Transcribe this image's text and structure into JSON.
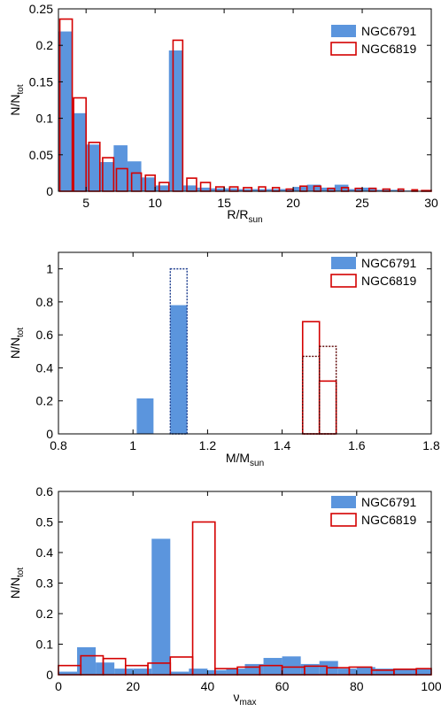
{
  "colors": {
    "ngc6791": "#5b95dd",
    "ngc6819": "#d40000",
    "axis": "#000000",
    "background": "#ffffff"
  },
  "chart_data": [
    {
      "type": "bar",
      "xlabel": {
        "main": "R/R",
        "sub": "sun"
      },
      "ylabel": {
        "main": "N/N",
        "sub": "tot"
      },
      "xlim": [
        3,
        30
      ],
      "ylim": [
        0,
        0.25
      ],
      "xticks": [
        5,
        10,
        15,
        20,
        25,
        30
      ],
      "xtick_labels": [
        "5",
        "10",
        "15",
        "20",
        "25",
        "30"
      ],
      "yticks": [
        0,
        0.05,
        0.1,
        0.15,
        0.2,
        0.25
      ],
      "ytick_labels": [
        "0",
        "0.05",
        "0.1",
        "0.15",
        "0.2",
        "0.25"
      ],
      "grid": false,
      "legend": "top-right",
      "series": [
        {
          "name": "NGC6791",
          "style": "filled",
          "bars": [
            [
              3.0,
              4.0,
              0.219
            ],
            [
              4.0,
              5.0,
              0.107
            ],
            [
              5.0,
              6.0,
              0.064
            ],
            [
              6.0,
              7.0,
              0.04
            ],
            [
              7.0,
              8.0,
              0.063
            ],
            [
              8.0,
              9.0,
              0.041
            ],
            [
              9.0,
              10.0,
              0.019
            ],
            [
              10.0,
              11.0,
              0.008
            ],
            [
              11.0,
              12.0,
              0.193
            ],
            [
              12.0,
              13.0,
              0.008
            ],
            [
              13.0,
              14.0,
              0.005
            ],
            [
              14.0,
              15.0,
              0.004
            ],
            [
              15.0,
              16.0,
              0.004
            ],
            [
              16.0,
              17.0,
              0.003
            ],
            [
              17.0,
              18.0,
              0.003
            ],
            [
              18.0,
              19.0,
              0.003
            ],
            [
              19.0,
              20.0,
              0.003
            ],
            [
              20.0,
              21.0,
              0.006
            ],
            [
              21.0,
              22.0,
              0.009
            ],
            [
              22.0,
              23.0,
              0.005
            ],
            [
              23.0,
              24.0,
              0.009
            ],
            [
              24.0,
              25.0,
              0.003
            ],
            [
              25.0,
              26.0,
              0.005
            ],
            [
              26.0,
              27.0,
              0.002
            ],
            [
              27.0,
              28.0,
              0.002
            ],
            [
              28.0,
              29.0,
              0.001
            ]
          ]
        },
        {
          "name": "NGC6819",
          "style": "outline",
          "bars": [
            [
              3.1,
              4.0,
              0.236
            ],
            [
              4.1,
              5.0,
              0.128
            ],
            [
              5.2,
              6.0,
              0.067
            ],
            [
              6.2,
              7.0,
              0.046
            ],
            [
              7.2,
              8.0,
              0.031
            ],
            [
              8.3,
              9.0,
              0.025
            ],
            [
              9.3,
              10.0,
              0.022
            ],
            [
              10.3,
              11.0,
              0.012
            ],
            [
              11.3,
              12.0,
              0.207
            ],
            [
              12.3,
              13.0,
              0.018
            ],
            [
              13.3,
              14.0,
              0.012
            ],
            [
              14.4,
              15.0,
              0.006
            ],
            [
              15.4,
              16.0,
              0.006
            ],
            [
              16.4,
              17.0,
              0.005
            ],
            [
              17.5,
              18.0,
              0.006
            ],
            [
              18.5,
              19.0,
              0.005
            ],
            [
              19.5,
              20.0,
              0.003
            ],
            [
              20.5,
              21.0,
              0.007
            ],
            [
              21.5,
              22.0,
              0.007
            ],
            [
              22.5,
              23.0,
              0.004
            ],
            [
              23.5,
              24.0,
              0.005
            ],
            [
              24.5,
              25.0,
              0.004
            ],
            [
              25.5,
              26.0,
              0.004
            ],
            [
              26.5,
              27.0,
              0.003
            ],
            [
              27.6,
              28.0,
              0.003
            ],
            [
              28.6,
              29.0,
              0.002
            ],
            [
              29.3,
              30.0,
              0.001
            ]
          ]
        }
      ]
    },
    {
      "type": "bar",
      "xlabel": {
        "main": "M/M",
        "sub": "sun"
      },
      "ylabel": {
        "main": "N/N",
        "sub": "tot"
      },
      "xlim": [
        0.8,
        1.8
      ],
      "ylim": [
        0,
        1.1
      ],
      "xticks": [
        0.8,
        1.0,
        1.2,
        1.4,
        1.6,
        1.8
      ],
      "xtick_labels": [
        "0.8",
        "1",
        "1.2",
        "1.4",
        "1.6",
        "1.8"
      ],
      "yticks": [
        0,
        0.2,
        0.4,
        0.6,
        0.8,
        1.0
      ],
      "ytick_labels": [
        "0",
        "0.2",
        "0.4",
        "0.6",
        "0.8",
        "1"
      ],
      "grid": false,
      "legend": "top-right",
      "series": [
        {
          "name": "NGC6791",
          "style": "filled",
          "bars": [
            [
              1.01,
              1.055,
              0.215
            ],
            [
              1.1,
              1.145,
              0.78
            ]
          ]
        },
        {
          "name": "NGC6791",
          "style": "dotted-outline",
          "legend": false,
          "bars": [
            [
              1.1,
              1.145,
              1.0
            ]
          ]
        },
        {
          "name": "NGC6819",
          "style": "outline",
          "bars": [
            [
              1.455,
              1.5,
              0.68
            ],
            [
              1.5,
              1.545,
              0.32
            ]
          ]
        },
        {
          "name": "NGC6819",
          "style": "dotted-outline",
          "legend": false,
          "bars": [
            [
              1.455,
              1.5,
              0.47
            ],
            [
              1.5,
              1.545,
              0.53
            ]
          ]
        }
      ]
    },
    {
      "type": "bar",
      "xlabel": {
        "main": "ν",
        "sub": "max"
      },
      "ylabel": {
        "main": "N/N",
        "sub": "tot"
      },
      "xlim": [
        0,
        100
      ],
      "ylim": [
        0,
        0.6
      ],
      "xticks": [
        0,
        20,
        40,
        60,
        80,
        100
      ],
      "xtick_labels": [
        "0",
        "20",
        "40",
        "60",
        "80",
        "100"
      ],
      "yticks": [
        0,
        0.1,
        0.2,
        0.3,
        0.4,
        0.5,
        0.6
      ],
      "ytick_labels": [
        "0",
        "0.1",
        "0.2",
        "0.3",
        "0.4",
        "0.5",
        "0.6"
      ],
      "grid": false,
      "legend": "top-right",
      "series": [
        {
          "name": "NGC6791",
          "style": "filled",
          "bars": [
            [
              0,
              5,
              0.01
            ],
            [
              5,
              10,
              0.09
            ],
            [
              10,
              15,
              0.04
            ],
            [
              15,
              20,
              0.02
            ],
            [
              20,
              25,
              0.02
            ],
            [
              25,
              30,
              0.445
            ],
            [
              30,
              35,
              0.01
            ],
            [
              35,
              40,
              0.02
            ],
            [
              40,
              45,
              0.015
            ],
            [
              45,
              50,
              0.02
            ],
            [
              50,
              55,
              0.035
            ],
            [
              55,
              60,
              0.055
            ],
            [
              60,
              65,
              0.06
            ],
            [
              65,
              70,
              0.035
            ],
            [
              70,
              75,
              0.045
            ],
            [
              75,
              80,
              0.02
            ],
            [
              80,
              85,
              0.025
            ],
            [
              85,
              90,
              0.02
            ],
            [
              90,
              95,
              0.02
            ],
            [
              95,
              100,
              0.02
            ]
          ]
        },
        {
          "name": "NGC6819",
          "style": "outline",
          "bars": [
            [
              0,
              6,
              0.03
            ],
            [
              6,
              12,
              0.062
            ],
            [
              12,
              18,
              0.053
            ],
            [
              18,
              24,
              0.03
            ],
            [
              24,
              30,
              0.038
            ],
            [
              30,
              36,
              0.058
            ],
            [
              36,
              42,
              0.5
            ],
            [
              42,
              48,
              0.02
            ],
            [
              48,
              54,
              0.025
            ],
            [
              54,
              60,
              0.03
            ],
            [
              60,
              66,
              0.025
            ],
            [
              66,
              72,
              0.028
            ],
            [
              72,
              78,
              0.023
            ],
            [
              78,
              84,
              0.025
            ],
            [
              84,
              90,
              0.015
            ],
            [
              90,
              96,
              0.018
            ],
            [
              96,
              100,
              0.02
            ]
          ]
        }
      ]
    }
  ]
}
